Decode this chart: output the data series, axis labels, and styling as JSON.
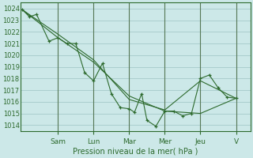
{
  "background_color": "#cce8e8",
  "grid_color": "#aacece",
  "line_color": "#2d6a2d",
  "marker_color": "#2d6a2d",
  "xlabel_text": "Pression niveau de la mer( hPa )",
  "ylim": [
    1013.5,
    1024.5
  ],
  "yticks": [
    1014,
    1015,
    1016,
    1017,
    1018,
    1019,
    1020,
    1021,
    1022,
    1023,
    1024
  ],
  "x_day_labels": [
    "Sam",
    "Lun",
    "Mar",
    "Mer",
    "Jeu",
    "V"
  ],
  "x_day_positions": [
    2.0,
    4.0,
    6.0,
    8.0,
    10.0,
    12.0
  ],
  "xlim": [
    -0.1,
    12.8
  ],
  "series1": {
    "x": [
      0.0,
      0.4,
      0.8,
      1.5,
      2.0,
      2.5,
      3.0,
      3.5,
      4.0,
      4.5,
      5.0,
      5.5,
      6.0,
      6.3,
      6.7,
      7.0,
      7.5,
      8.0,
      8.5,
      9.0,
      9.5,
      10.0,
      10.5,
      11.0,
      11.5,
      12.0
    ],
    "y": [
      1023.9,
      1023.3,
      1023.5,
      1021.2,
      1021.5,
      1021.0,
      1021.0,
      1018.5,
      1017.8,
      1019.3,
      1016.7,
      1015.5,
      1015.4,
      1015.1,
      1016.7,
      1014.4,
      1013.9,
      1015.2,
      1015.2,
      1014.8,
      1015.0,
      1018.0,
      1018.3,
      1017.2,
      1016.4,
      1016.3
    ]
  },
  "series2": {
    "x": [
      0.0,
      2.0,
      4.0,
      6.0,
      8.0,
      10.0,
      12.0
    ],
    "y": [
      1023.9,
      1021.5,
      1019.4,
      1016.5,
      1015.2,
      1015.0,
      1016.3
    ]
  },
  "series3": {
    "x": [
      0.0,
      2.0,
      4.0,
      6.0,
      8.0,
      10.0,
      12.0
    ],
    "y": [
      1023.9,
      1021.8,
      1019.6,
      1016.2,
      1015.3,
      1017.8,
      1016.3
    ]
  }
}
